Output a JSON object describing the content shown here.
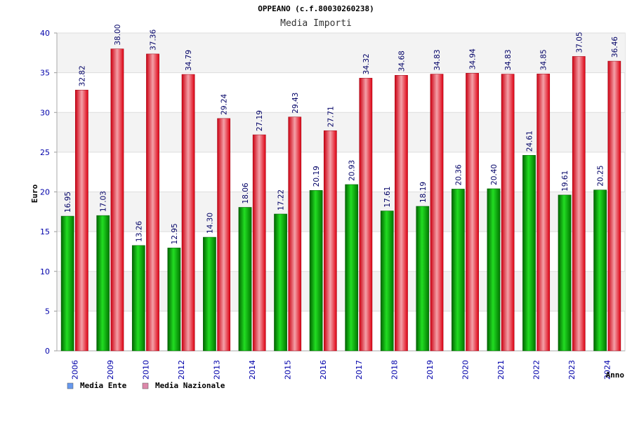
{
  "chart_data": {
    "type": "bar",
    "title": "OPPEANO (c.f.80030260238)",
    "subtitle": "Media Importi",
    "xlabel": "Anno",
    "ylabel": "Euro",
    "ylim": [
      0,
      40
    ],
    "yticks": [
      0,
      5,
      10,
      15,
      20,
      25,
      30,
      35,
      40
    ],
    "grid": true,
    "legend_position": "bottom-left",
    "categories": [
      "2006",
      "2009",
      "2010",
      "2012",
      "2013",
      "2014",
      "2015",
      "2016",
      "2017",
      "2018",
      "2019",
      "2020",
      "2021",
      "2022",
      "2023",
      "2024"
    ],
    "series": [
      {
        "name": "Media Ente",
        "color": "#00aa00",
        "legend_color": "#6699ee",
        "values": [
          16.95,
          17.03,
          13.26,
          12.95,
          14.3,
          18.06,
          17.22,
          20.19,
          20.93,
          17.61,
          18.19,
          20.36,
          20.4,
          24.61,
          19.61,
          20.25
        ],
        "labels": [
          "16.95",
          "17.03",
          "13.26",
          "12.95",
          "14.30",
          "18.06",
          "17.22",
          "20.19",
          "20.93",
          "17.61",
          "18.19",
          "20.36",
          "20.40",
          "24.61",
          "19.61",
          "20.25"
        ]
      },
      {
        "name": "Media Nazionale",
        "color": "#ee1122",
        "legend_color": "#dd88aa",
        "values": [
          32.82,
          38.0,
          37.36,
          34.79,
          29.24,
          27.19,
          29.43,
          27.71,
          34.32,
          34.68,
          34.83,
          34.94,
          34.83,
          34.85,
          37.05,
          36.46
        ],
        "labels": [
          "32.82",
          "38.00",
          "37.36",
          "34.79",
          "29.24",
          "27.19",
          "29.43",
          "27.71",
          "34.32",
          "34.68",
          "34.83",
          "34.94",
          "34.83",
          "34.85",
          "37.05",
          "36.46"
        ]
      }
    ]
  }
}
